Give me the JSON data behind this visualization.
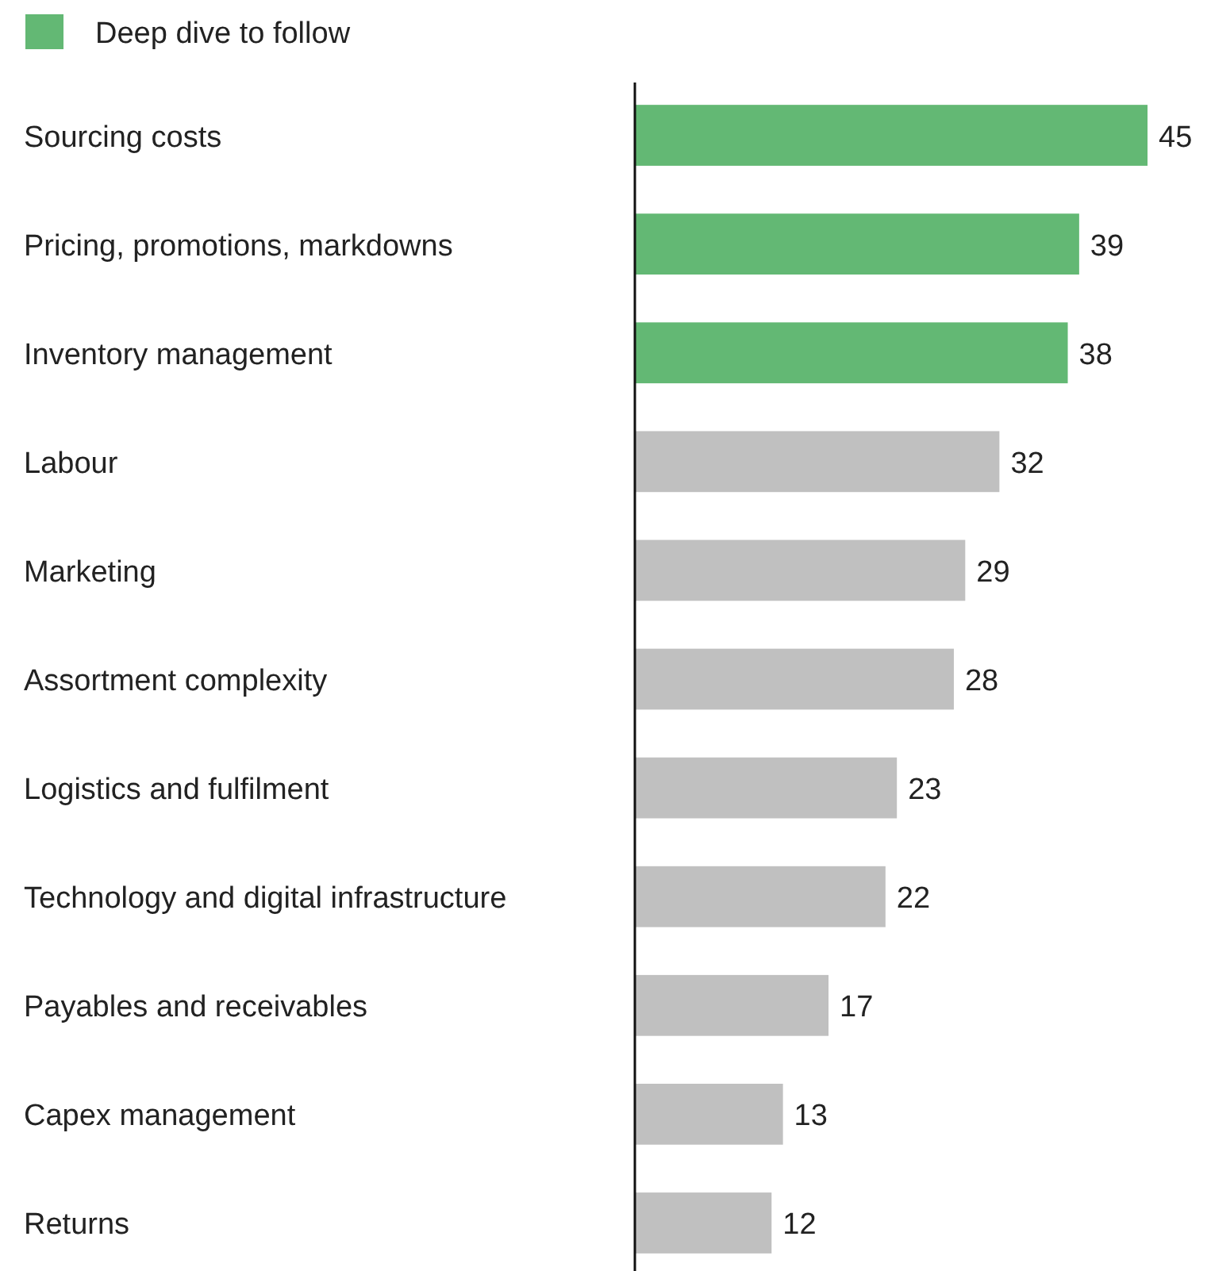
{
  "chart_data": {
    "type": "bar",
    "orientation": "horizontal",
    "data_labels": true,
    "legend": "top left",
    "categories": [
      "Sourcing costs",
      "Pricing, promotions, markdowns",
      "Inventory management",
      "Labour",
      "Marketing",
      "Assortment complexity",
      "Logistics and fulfilment",
      "Technology and digital infrastructure",
      "Payables and receivables",
      "Capex management",
      "Returns"
    ],
    "series": [
      {
        "name": "Deep dive to follow",
        "color": "#63b874",
        "values": [
          45,
          39,
          38,
          null,
          null,
          null,
          null,
          null,
          null,
          null,
          null
        ]
      },
      {
        "color": "#c0c0c0",
        "values": [
          null,
          null,
          null,
          32,
          29,
          28,
          23,
          22,
          17,
          13,
          12
        ]
      }
    ]
  }
}
